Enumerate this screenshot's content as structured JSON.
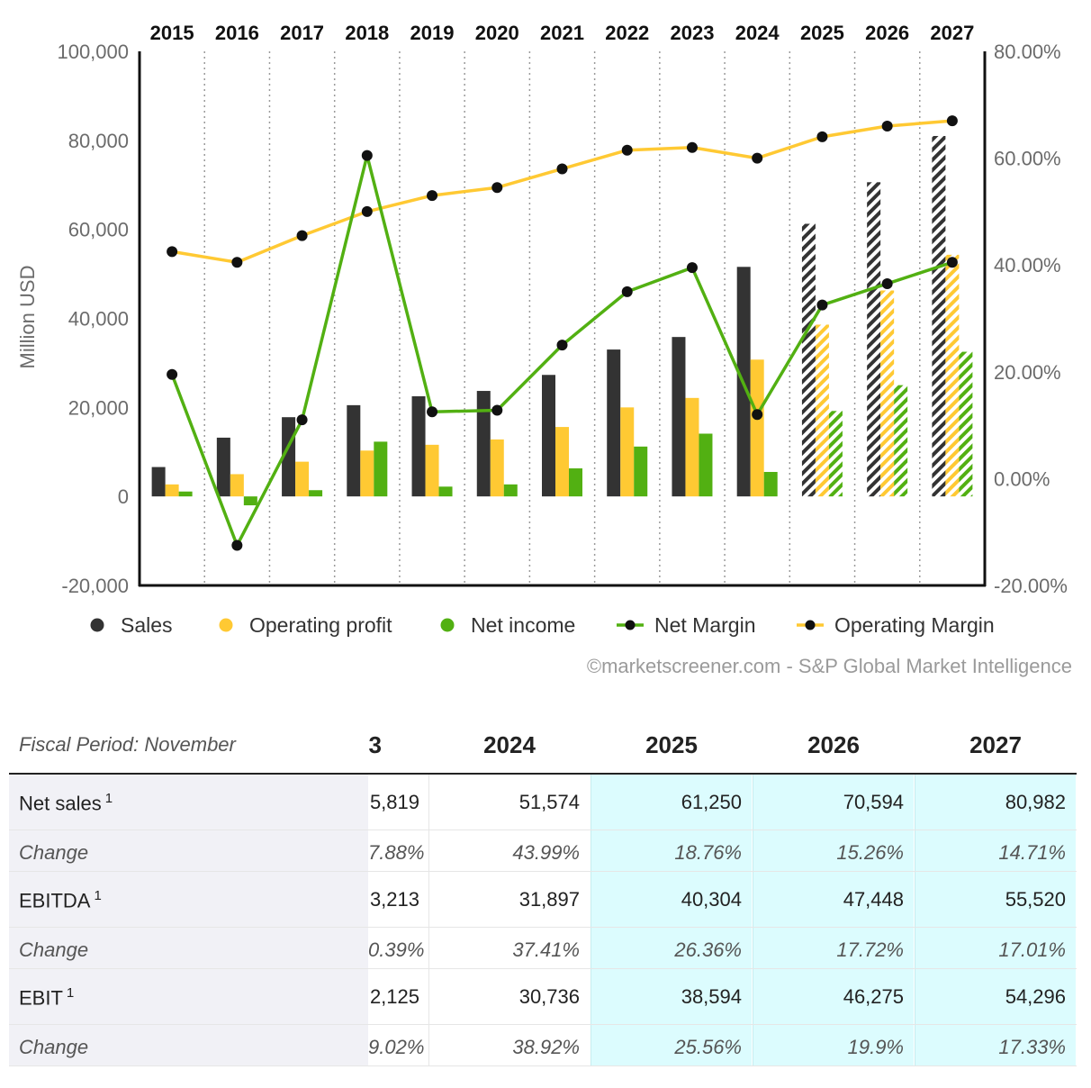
{
  "chart_data": {
    "type": "bar",
    "categories": [
      "2015",
      "2016",
      "2017",
      "2018",
      "2019",
      "2020",
      "2021",
      "2022",
      "2023",
      "2024",
      "2025",
      "2026",
      "2027"
    ],
    "estimate_from": "2025",
    "series": [
      {
        "name": "Sales",
        "kind": "bar",
        "axis": "left",
        "color": "#333333",
        "values": [
          6600,
          13200,
          17800,
          20500,
          22500,
          23700,
          27300,
          33000,
          35819,
          51574,
          61250,
          70594,
          80982
        ]
      },
      {
        "name": "Operating profit",
        "kind": "bar",
        "axis": "left",
        "color": "#ffc933",
        "values": [
          2700,
          5000,
          7800,
          10300,
          11600,
          12800,
          15600,
          20000,
          22125,
          30736,
          38594,
          46275,
          54296
        ]
      },
      {
        "name": "Net income",
        "kind": "bar",
        "axis": "left",
        "color": "#52b012",
        "values": [
          1100,
          -2000,
          1400,
          12300,
          2200,
          2700,
          6300,
          11200,
          14100,
          5500,
          19200,
          25000,
          32500
        ]
      },
      {
        "name": "Net Margin",
        "kind": "line",
        "axis": "right",
        "color": "#52b012",
        "values": [
          19.5,
          -12.5,
          11.0,
          60.5,
          12.5,
          12.8,
          25.0,
          35.0,
          39.5,
          12.0,
          32.5,
          36.5,
          40.5
        ]
      },
      {
        "name": "Operating Margin",
        "kind": "line",
        "axis": "right",
        "color": "#ffc933",
        "values": [
          42.5,
          40.5,
          45.5,
          50.0,
          53.0,
          54.5,
          58.0,
          61.5,
          62.0,
          60.0,
          64.0,
          66.0,
          67.0
        ]
      }
    ],
    "ylabel": "Million USD",
    "ylim": [
      -20000,
      100000
    ],
    "y_ticks": [
      "-20,000",
      "0",
      "20,000",
      "40,000",
      "60,000",
      "80,000",
      "100,000"
    ],
    "y2lim": [
      -20,
      80
    ],
    "y2_ticks": [
      "-20.00%",
      "0.00%",
      "20.00%",
      "40.00%",
      "60.00%",
      "80.00%"
    ],
    "legend": [
      "Sales",
      "Operating profit",
      "Net income",
      "Net Margin",
      "Operating Margin"
    ],
    "legend_position": "bottom",
    "grid": "vertical dotted"
  },
  "credit": "©marketscreener.com - S&P Global Market Intelligence",
  "table": {
    "fiscal_label": "Fiscal Period: November",
    "partial_year_label": "3",
    "years": [
      "2024",
      "2025",
      "2026",
      "2027"
    ],
    "rows": [
      {
        "label": "Net sales",
        "note": "1",
        "kind": "main",
        "partial": "5,819",
        "values": [
          "51,574",
          "61,250",
          "70,594",
          "80,982"
        ]
      },
      {
        "label": "Change",
        "note": "",
        "kind": "chg",
        "partial": "7.88%",
        "values": [
          "43.99%",
          "18.76%",
          "15.26%",
          "14.71%"
        ]
      },
      {
        "label": "EBITDA",
        "note": "1",
        "kind": "main",
        "partial": "3,213",
        "values": [
          "31,897",
          "40,304",
          "47,448",
          "55,520"
        ]
      },
      {
        "label": "Change",
        "note": "",
        "kind": "chg",
        "partial": "0.39%",
        "values": [
          "37.41%",
          "26.36%",
          "17.72%",
          "17.01%"
        ]
      },
      {
        "label": "EBIT",
        "note": "1",
        "kind": "main",
        "partial": "2,125",
        "values": [
          "30,736",
          "38,594",
          "46,275",
          "54,296"
        ]
      },
      {
        "label": "Change",
        "note": "",
        "kind": "chg",
        "partial": "9.02%",
        "values": [
          "38.92%",
          "25.56%",
          "19.9%",
          "17.33%"
        ]
      }
    ]
  }
}
